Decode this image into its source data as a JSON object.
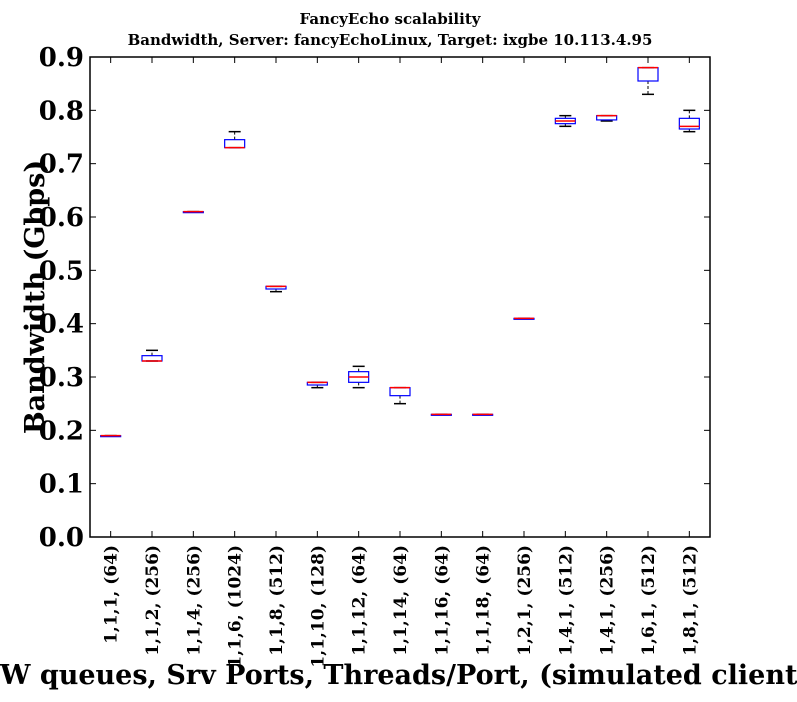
{
  "chart_data": {
    "type": "box",
    "title": "FancyEcho scalability",
    "subtitle": "Bandwidth, Server: fancyEchoLinux, Target: ixgbe 10.113.4.95",
    "xlabel": "HW queues, Srv Ports, Threads/Port, (simulated clients)",
    "ylabel": "Bandwidth (Gbps)",
    "ylim": [
      0,
      0.9
    ],
    "yticks": [
      "0.0",
      "0.1",
      "0.2",
      "0.3",
      "0.4",
      "0.5",
      "0.6",
      "0.7",
      "0.8",
      "0.9"
    ],
    "grid": false,
    "colors": {
      "box": "#0000ff",
      "median": "#ff0000",
      "whisker": "#000000"
    },
    "categories": [
      "1,1,1, (64)",
      "1,1,2, (256)",
      "1,1,4, (256)",
      "1,1,6, (1024)",
      "1,1,8, (512)",
      "1,1,10, (128)",
      "1,1,12, (64)",
      "1,1,14, (64)",
      "1,1,16, (64)",
      "1,1,18, (64)",
      "1,2,1, (256)",
      "1,4,1, (512)",
      "1,4,1, (256)",
      "1,6,1, (512)",
      "1,8,1, (512)"
    ],
    "boxes": [
      {
        "min": 0.19,
        "q1": 0.19,
        "median": 0.19,
        "q3": 0.19,
        "max": 0.19
      },
      {
        "min": 0.33,
        "q1": 0.33,
        "median": 0.33,
        "q3": 0.34,
        "max": 0.35
      },
      {
        "min": 0.61,
        "q1": 0.61,
        "median": 0.61,
        "q3": 0.61,
        "max": 0.61
      },
      {
        "min": 0.73,
        "q1": 0.73,
        "median": 0.73,
        "q3": 0.745,
        "max": 0.76
      },
      {
        "min": 0.46,
        "q1": 0.465,
        "median": 0.47,
        "q3": 0.47,
        "max": 0.47
      },
      {
        "min": 0.28,
        "q1": 0.285,
        "median": 0.29,
        "q3": 0.29,
        "max": 0.29
      },
      {
        "min": 0.28,
        "q1": 0.29,
        "median": 0.3,
        "q3": 0.31,
        "max": 0.32
      },
      {
        "min": 0.25,
        "q1": 0.265,
        "median": 0.28,
        "q3": 0.28,
        "max": 0.28
      },
      {
        "min": 0.23,
        "q1": 0.23,
        "median": 0.23,
        "q3": 0.23,
        "max": 0.23
      },
      {
        "min": 0.23,
        "q1": 0.23,
        "median": 0.23,
        "q3": 0.23,
        "max": 0.23
      },
      {
        "min": 0.41,
        "q1": 0.41,
        "median": 0.41,
        "q3": 0.41,
        "max": 0.41
      },
      {
        "min": 0.77,
        "q1": 0.775,
        "median": 0.78,
        "q3": 0.785,
        "max": 0.79
      },
      {
        "min": 0.78,
        "q1": 0.782,
        "median": 0.79,
        "q3": 0.79,
        "max": 0.79
      },
      {
        "min": 0.83,
        "q1": 0.855,
        "median": 0.88,
        "q3": 0.88,
        "max": 0.88
      },
      {
        "min": 0.76,
        "q1": 0.765,
        "median": 0.77,
        "q3": 0.785,
        "max": 0.8
      }
    ]
  }
}
